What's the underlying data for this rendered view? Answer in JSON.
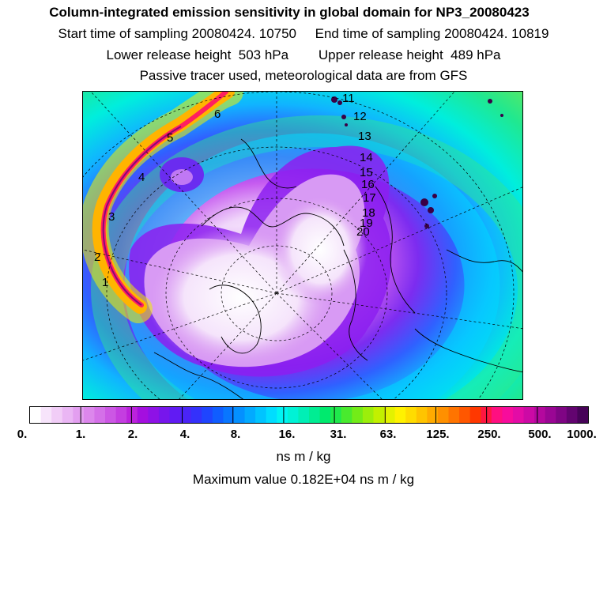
{
  "header": {
    "title": "Column-integrated emission sensitivity in global domain for NP3_20080423",
    "line2": "Start time of sampling 20080424. 10750     End time of sampling 20080424. 10819",
    "line3": "Lower release height  503 hPa        Upper release height  489 hPa",
    "line4": "Passive tracer used, meteorological data are from GFS"
  },
  "map": {
    "trajectory_labels": [
      "1",
      "2",
      "3",
      "4",
      "5",
      "6",
      "11",
      "12",
      "13",
      "14",
      "15",
      "16",
      "17",
      "18",
      "19",
      "20"
    ]
  },
  "colorbar": {
    "ticks": [
      "0.",
      "1.",
      "2.",
      "4.",
      "8.",
      "16.",
      "31.",
      "63.",
      "125.",
      "250.",
      "500.",
      "1000."
    ],
    "unit": "ns m / kg",
    "colors": [
      "#ffffff",
      "#f7e4fb",
      "#f1cdf7",
      "#eab6f4",
      "#e39ff0",
      "#dc87ec",
      "#d470e8",
      "#cc57e4",
      "#c43ee0",
      "#bb22dc",
      "#a40fdf",
      "#8e12e6",
      "#7716ec",
      "#611bf3",
      "#4a24f7",
      "#3431fb",
      "#1f45fe",
      "#105dff",
      "#0876ff",
      "#0490ff",
      "#02aaff",
      "#00c4ff",
      "#00ddff",
      "#00f4f4",
      "#00f2d6",
      "#00efb6",
      "#00ed93",
      "#00ea6e",
      "#1fe94c",
      "#49ea2e",
      "#73ec18",
      "#9cee0b",
      "#c2f000",
      "#e3f200",
      "#fff200",
      "#ffdc00",
      "#ffc400",
      "#ffab00",
      "#ff9000",
      "#ff7400",
      "#ff5700",
      "#ff3800",
      "#ff1740",
      "#ff0f80",
      "#f70c9c",
      "#e30ca6",
      "#cc0aa5",
      "#b4089e",
      "#9a0694",
      "#7f0584",
      "#630470",
      "#470358"
    ]
  },
  "max_value": "Maximum value  0.182E+04 ns m / kg"
}
